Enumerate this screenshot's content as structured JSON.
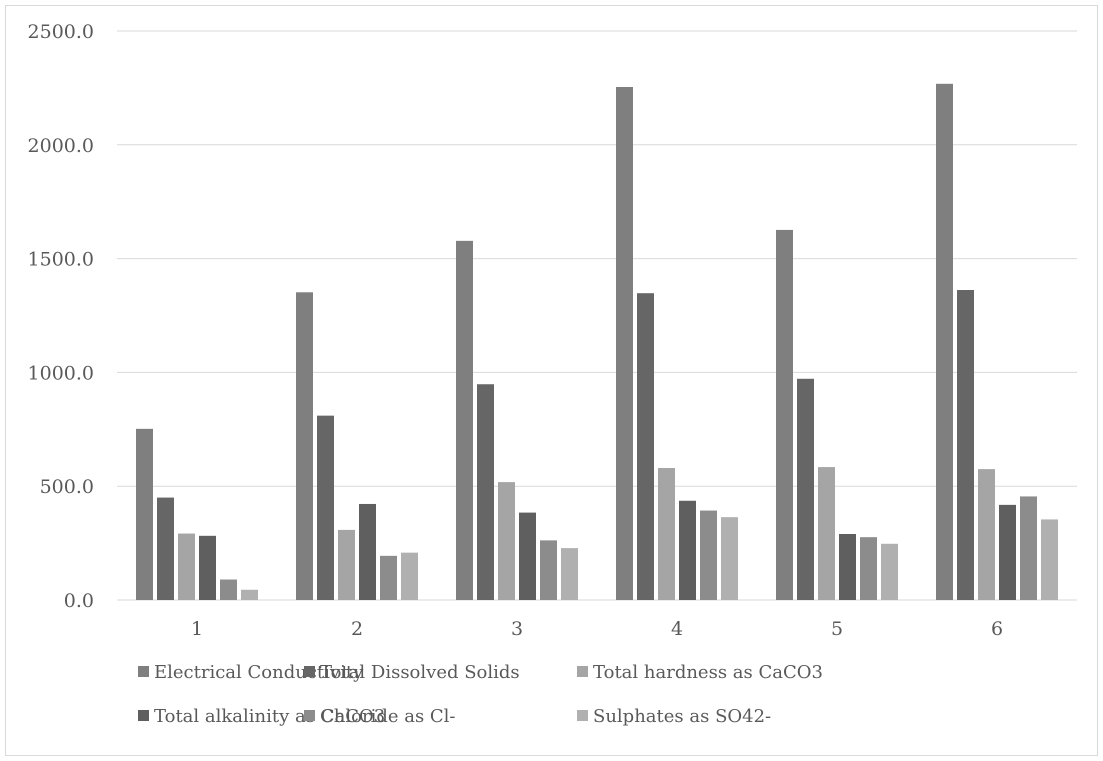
{
  "chart_data": {
    "type": "bar",
    "categories": [
      "1",
      "2",
      "3",
      "4",
      "5",
      "6"
    ],
    "ylim": [
      0,
      2500
    ],
    "yticks": [
      0,
      500,
      1000,
      1500,
      2000,
      2500
    ],
    "ytick_labels": [
      "0.0",
      "500.0",
      "1000.0",
      "1500.0",
      "2000.0",
      "2500.0"
    ],
    "grid": true,
    "legend_position": "bottom",
    "series": [
      {
        "name": "Electrical Conductivity",
        "color": "#7f7f7f",
        "values": [
          752,
          1352,
          1578,
          2254,
          1626,
          2268
        ]
      },
      {
        "name": "Total Dissolved Solids",
        "color": "#666666",
        "values": [
          450,
          810,
          948,
          1348,
          972,
          1362
        ]
      },
      {
        "name": "Total hardness as CaCO3",
        "color": "#a5a5a5",
        "values": [
          292,
          308,
          518,
          580,
          584,
          575
        ]
      },
      {
        "name": "Total alkalinity as CaCO3",
        "color": "#5f5f5f",
        "values": [
          282,
          422,
          384,
          436,
          290,
          418
        ]
      },
      {
        "name": "Chloride as Cl-",
        "color": "#8c8c8c",
        "values": [
          90,
          194,
          262,
          393,
          276,
          455
        ]
      },
      {
        "name": "Sulphates as SO42-",
        "color": "#b0b0b0",
        "values": [
          45,
          208,
          228,
          364,
          247,
          354
        ]
      }
    ]
  }
}
